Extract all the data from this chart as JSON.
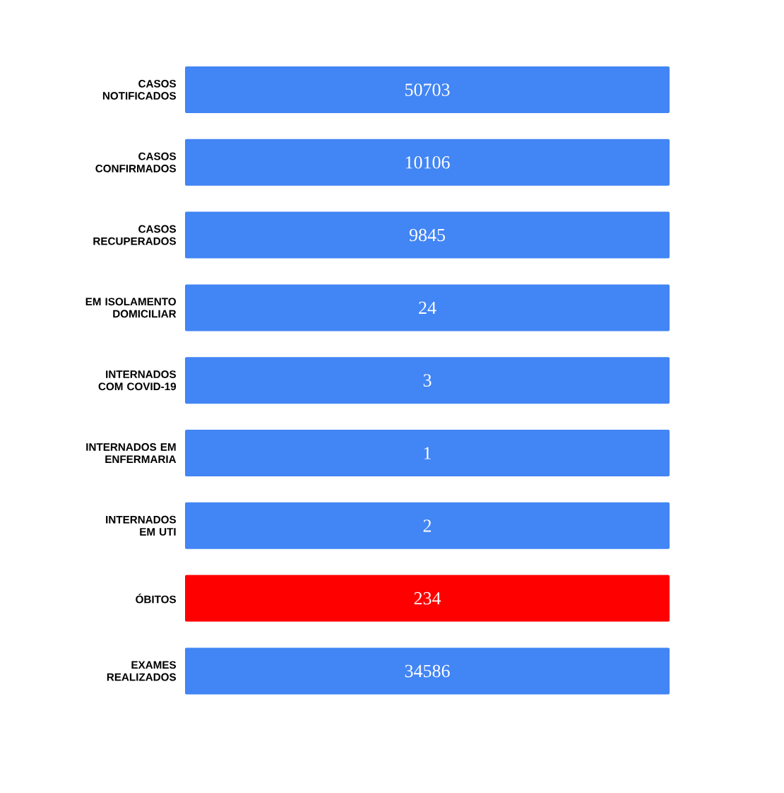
{
  "chart_data": {
    "type": "other",
    "categories": [
      "CASOS NOTIFICADOS",
      "CASOS CONFIRMADOS",
      "CASOS RECUPERADOS",
      "EM ISOLAMENTO DOMICILIAR",
      "INTERNADOS COM COVID-19",
      "INTERNADOS EM ENFERMARIA",
      "INTERNADOS EM UTI",
      "ÓBITOS",
      "EXAMES REALIZADOS"
    ],
    "values": [
      50703,
      10106,
      9845,
      24,
      3,
      1,
      2,
      234,
      34586
    ],
    "colors": [
      "#4285f4",
      "#4285f4",
      "#4285f4",
      "#4285f4",
      "#4285f4",
      "#4285f4",
      "#4285f4",
      "#ff0000",
      "#4285f4"
    ],
    "data_labels": true
  }
}
